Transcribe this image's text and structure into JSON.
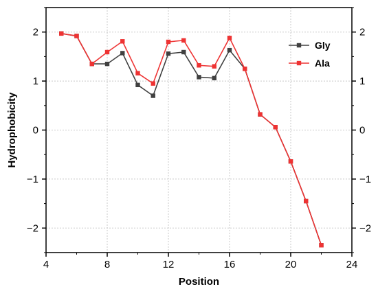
{
  "chart_data": {
    "type": "line",
    "xlabel": "Position",
    "ylabel": "Hydrophobicity",
    "xlim": [
      4,
      24
    ],
    "ylim": [
      -2.5,
      2.5
    ],
    "xticks": [
      4,
      8,
      12,
      16,
      20,
      24
    ],
    "yticks": [
      -2,
      -1,
      0,
      1,
      2
    ],
    "xtick_labels": [
      "4",
      "8",
      "12",
      "16",
      "20",
      "24"
    ],
    "ytick_labels": [
      "−2",
      "−1",
      "0",
      "1",
      "2"
    ],
    "grid": true,
    "legend_position": "top-right",
    "series": [
      {
        "name": "Gly",
        "color": "#404040",
        "x": [
          5,
          6,
          7,
          8,
          9,
          10,
          11,
          12,
          13,
          14,
          15,
          16,
          17,
          18,
          19,
          20,
          21,
          22
        ],
        "y": [
          1.97,
          1.92,
          1.35,
          1.35,
          1.57,
          0.92,
          0.7,
          1.56,
          1.59,
          1.08,
          1.06,
          1.63,
          1.25,
          0.32,
          0.06,
          -0.64,
          -1.45,
          -2.35
        ]
      },
      {
        "name": "Ala",
        "color": "#ee3333",
        "x": [
          5,
          6,
          7,
          8,
          9,
          10,
          11,
          12,
          13,
          14,
          15,
          16,
          17,
          18,
          19,
          20,
          21,
          22
        ],
        "y": [
          1.97,
          1.92,
          1.35,
          1.59,
          1.81,
          1.16,
          0.95,
          1.8,
          1.83,
          1.32,
          1.3,
          1.88,
          1.25,
          0.32,
          0.06,
          -0.64,
          -1.45,
          -2.35
        ]
      }
    ]
  }
}
